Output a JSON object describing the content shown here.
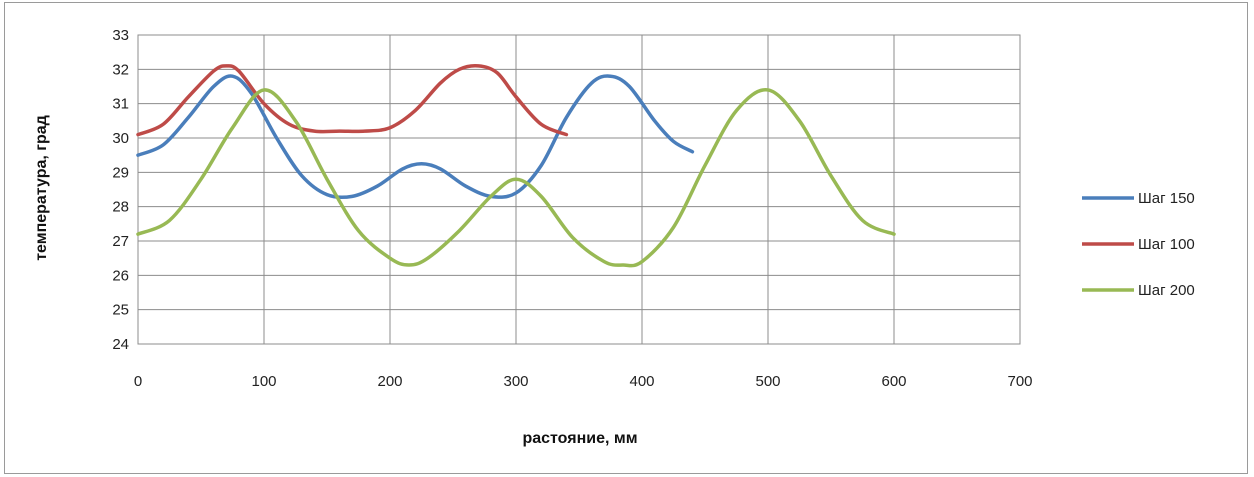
{
  "chart_data": {
    "type": "line",
    "xlabel": "растояние, мм",
    "ylabel": "температура, град",
    "xlim": [
      0,
      700
    ],
    "ylim": [
      24,
      33
    ],
    "xticks": [
      0,
      100,
      200,
      300,
      400,
      500,
      600,
      700
    ],
    "yticks": [
      24,
      25,
      26,
      27,
      28,
      29,
      30,
      31,
      32,
      33
    ],
    "grid": true,
    "legend_position": "right",
    "series": [
      {
        "name": "Шаг 150",
        "color": "#4a7ebb",
        "x": [
          0,
          20,
          40,
          60,
          75,
          90,
          110,
          130,
          150,
          170,
          190,
          210,
          225,
          240,
          260,
          280,
          300,
          320,
          340,
          360,
          375,
          390,
          410,
          425,
          440
        ],
        "y": [
          29.5,
          29.8,
          30.6,
          31.5,
          31.8,
          31.3,
          30.0,
          28.9,
          28.35,
          28.3,
          28.6,
          29.1,
          29.25,
          29.1,
          28.6,
          28.3,
          28.4,
          29.2,
          30.6,
          31.6,
          31.8,
          31.5,
          30.5,
          29.9,
          29.6
        ]
      },
      {
        "name": "Шаг 100",
        "color": "#be4b48",
        "x": [
          0,
          20,
          40,
          60,
          70,
          80,
          100,
          120,
          140,
          160,
          180,
          200,
          220,
          240,
          255,
          270,
          285,
          300,
          320,
          340
        ],
        "y": [
          30.1,
          30.4,
          31.2,
          31.95,
          32.1,
          31.95,
          31.0,
          30.4,
          30.2,
          30.2,
          30.2,
          30.3,
          30.8,
          31.6,
          32.0,
          32.1,
          31.9,
          31.2,
          30.4,
          30.1
        ]
      },
      {
        "name": "Шаг 200",
        "color": "#98b954",
        "x": [
          0,
          25,
          50,
          75,
          100,
          125,
          150,
          175,
          200,
          215,
          230,
          255,
          280,
          300,
          320,
          345,
          370,
          385,
          400,
          425,
          450,
          475,
          500,
          525,
          550,
          575,
          600
        ],
        "y": [
          27.2,
          27.6,
          28.8,
          30.3,
          31.4,
          30.5,
          28.8,
          27.3,
          26.5,
          26.3,
          26.5,
          27.3,
          28.3,
          28.8,
          28.3,
          27.1,
          26.4,
          26.3,
          26.4,
          27.4,
          29.2,
          30.8,
          31.4,
          30.5,
          28.9,
          27.6,
          27.2
        ]
      }
    ]
  }
}
